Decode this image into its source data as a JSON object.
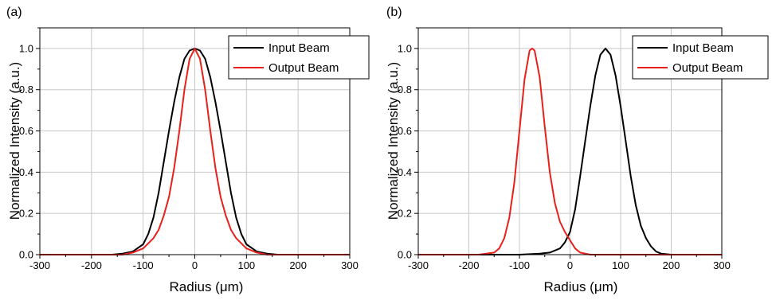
{
  "chart_data": [
    {
      "panel_label": "(a)",
      "type": "line",
      "xlabel": "Radius (μm)",
      "ylabel": "Normalized Intensity (a.u.)",
      "xlim": [
        -300,
        300
      ],
      "ylim": [
        0,
        1.1
      ],
      "xticks": [
        "-300",
        "-200",
        "-100",
        "0",
        "100",
        "200",
        "300"
      ],
      "yticks": [
        "0.0",
        "0.2",
        "0.4",
        "0.6",
        "0.8",
        "1.0"
      ],
      "grid": true,
      "legend": "top-right",
      "series": [
        {
          "name": "Input Beam",
          "color": "#000000",
          "x": [
            -300,
            -160,
            -140,
            -120,
            -100,
            -90,
            -80,
            -70,
            -60,
            -50,
            -40,
            -30,
            -20,
            -10,
            0,
            10,
            20,
            30,
            40,
            50,
            60,
            70,
            80,
            90,
            100,
            120,
            140,
            160,
            300
          ],
          "y": [
            0,
            0,
            0.005,
            0.015,
            0.05,
            0.1,
            0.18,
            0.3,
            0.45,
            0.6,
            0.74,
            0.86,
            0.95,
            0.99,
            1.0,
            0.99,
            0.95,
            0.86,
            0.74,
            0.6,
            0.45,
            0.3,
            0.18,
            0.1,
            0.05,
            0.015,
            0.005,
            0,
            0
          ]
        },
        {
          "name": "Output Beam",
          "color": "#e8201c",
          "x": [
            -300,
            -140,
            -120,
            -100,
            -80,
            -70,
            -60,
            -50,
            -40,
            -30,
            -20,
            -10,
            0,
            10,
            20,
            30,
            40,
            50,
            60,
            70,
            80,
            100,
            120,
            140,
            300
          ],
          "y": [
            0,
            0,
            0.01,
            0.03,
            0.08,
            0.12,
            0.19,
            0.28,
            0.42,
            0.6,
            0.8,
            0.95,
            1.0,
            0.95,
            0.8,
            0.6,
            0.42,
            0.28,
            0.19,
            0.12,
            0.08,
            0.03,
            0.01,
            0,
            0
          ]
        }
      ]
    },
    {
      "panel_label": "(b)",
      "type": "line",
      "xlabel": "Radius (μm)",
      "ylabel": "Normalized Intensity (a.u.)",
      "xlim": [
        -300,
        300
      ],
      "ylim": [
        0,
        1.1
      ],
      "xticks": [
        "-300",
        "-200",
        "-100",
        "0",
        "100",
        "200",
        "300"
      ],
      "yticks": [
        "0.0",
        "0.2",
        "0.4",
        "0.6",
        "0.8",
        "1.0"
      ],
      "grid": true,
      "legend": "top-right",
      "series": [
        {
          "name": "Input Beam",
          "color": "#000000",
          "x": [
            -300,
            -100,
            -60,
            -40,
            -20,
            -10,
            0,
            10,
            20,
            30,
            40,
            50,
            60,
            70,
            80,
            90,
            100,
            110,
            120,
            130,
            140,
            150,
            160,
            170,
            180,
            200,
            300
          ],
          "y": [
            0,
            0,
            0.005,
            0.01,
            0.03,
            0.06,
            0.11,
            0.22,
            0.38,
            0.55,
            0.72,
            0.87,
            0.97,
            1.0,
            0.97,
            0.87,
            0.72,
            0.55,
            0.38,
            0.24,
            0.14,
            0.08,
            0.04,
            0.015,
            0.005,
            0,
            0
          ]
        },
        {
          "name": "Output Beam",
          "color": "#e8201c",
          "x": [
            -300,
            -180,
            -150,
            -140,
            -130,
            -120,
            -110,
            -100,
            -90,
            -80,
            -75,
            -70,
            -60,
            -50,
            -40,
            -30,
            -20,
            -10,
            0,
            10,
            20,
            40,
            300
          ],
          "y": [
            0,
            0,
            0.01,
            0.03,
            0.08,
            0.18,
            0.35,
            0.6,
            0.85,
            0.99,
            1.0,
            0.99,
            0.86,
            0.62,
            0.4,
            0.25,
            0.16,
            0.11,
            0.07,
            0.03,
            0.01,
            0,
            0
          ]
        }
      ]
    }
  ]
}
